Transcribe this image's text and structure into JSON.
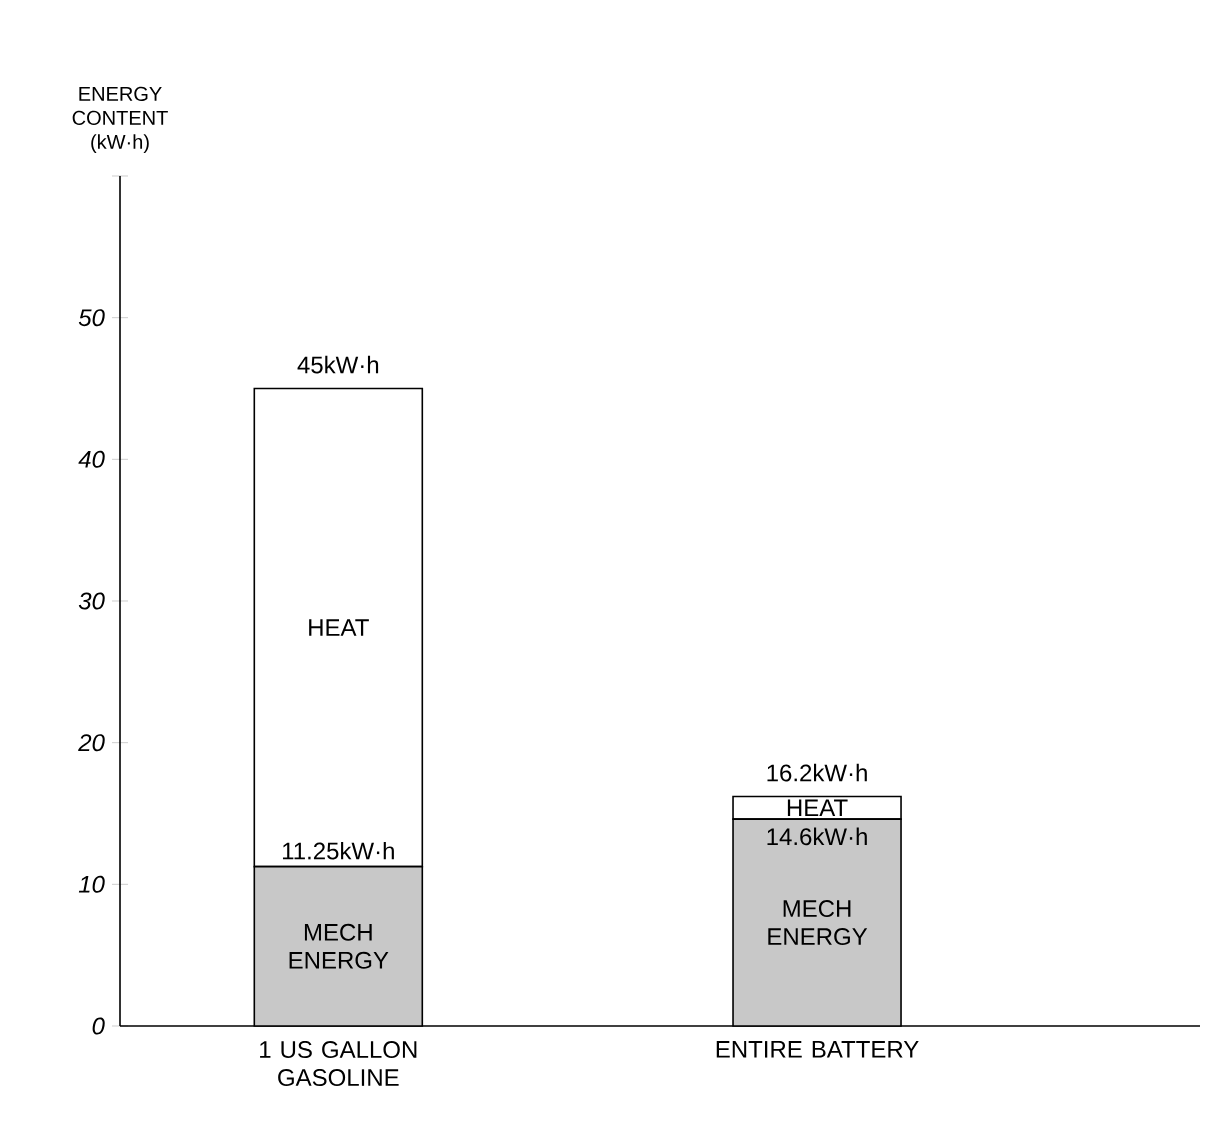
{
  "chart_data": {
    "type": "bar",
    "stacked": true,
    "ylabel": "ENERGY CONTENT (kW·h)",
    "categories": [
      "1 US GALLON GASOLINE",
      "ENTIRE BATTERY"
    ],
    "series": [
      {
        "name": "MECH ENERGY",
        "color": "#c8c8c8",
        "values": [
          11.25,
          14.6
        ],
        "value_labels": [
          "11.25kW·h",
          "14.6kW·h"
        ]
      },
      {
        "name": "HEAT",
        "color": "#ffffff",
        "values": [
          33.75,
          1.6
        ]
      }
    ],
    "totals": [
      "45kW·h",
      "16.2kW·h"
    ],
    "ylim": [
      0,
      60
    ],
    "yticks": [
      0,
      10,
      20,
      30,
      40,
      50,
      {
        "value": 60,
        "label": null
      }
    ],
    "legend": false,
    "grid": false
  }
}
